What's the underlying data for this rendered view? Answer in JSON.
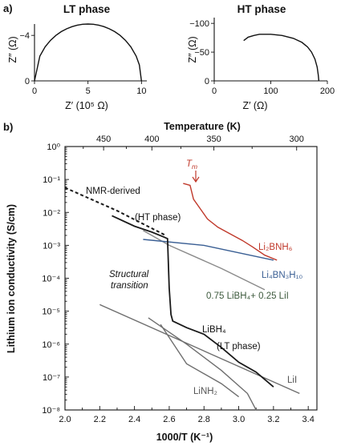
{
  "panel_labels": {
    "a": "a)",
    "b": "b)"
  },
  "chart_data": [
    {
      "id": "lt",
      "type": "line",
      "title": "LT phase",
      "xlabel": "Z′ (10⁵ Ω)",
      "ylabel": "Z″ (Ω)",
      "xlim": [
        0,
        10.5
      ],
      "ylim": [
        0,
        -5
      ],
      "xticks": [
        0,
        5,
        10
      ],
      "yticks": [
        0,
        -4
      ],
      "grid": false,
      "series": [
        {
          "points": [
            [
              0,
              0
            ],
            [
              0.5,
              -2.18
            ],
            [
              1,
              -3.0
            ],
            [
              1.5,
              -3.57
            ],
            [
              2,
              -4.0
            ],
            [
              2.5,
              -4.33
            ],
            [
              3,
              -4.58
            ],
            [
              3.5,
              -4.77
            ],
            [
              4,
              -4.9
            ],
            [
              4.5,
              -4.98
            ],
            [
              5,
              -5.0
            ],
            [
              5.5,
              -4.98
            ],
            [
              6,
              -4.9
            ],
            [
              6.5,
              -4.77
            ],
            [
              7,
              -4.58
            ],
            [
              7.5,
              -4.33
            ],
            [
              8,
              -4.0
            ],
            [
              8.5,
              -3.57
            ],
            [
              9,
              -3.0
            ],
            [
              9.5,
              -2.18
            ],
            [
              9.8,
              -1.4
            ],
            [
              10,
              0
            ]
          ]
        }
      ]
    },
    {
      "id": "ht",
      "type": "line",
      "title": "HT phase",
      "xlabel": "Z′ (Ω)",
      "ylabel": "Z″ (Ω)",
      "xlim": [
        0,
        200
      ],
      "ylim": [
        0,
        -110
      ],
      "xticks": [
        0,
        100,
        200
      ],
      "yticks": [
        0,
        -50,
        -100
      ],
      "grid": false,
      "series": [
        {
          "points": [
            [
              52,
              -70
            ],
            [
              60,
              -76
            ],
            [
              70,
              -79
            ],
            [
              80,
              -81
            ],
            [
              100,
              -81
            ],
            [
              120,
              -79
            ],
            [
              140,
              -74
            ],
            [
              155,
              -67
            ],
            [
              165,
              -59
            ],
            [
              172,
              -50
            ],
            [
              178,
              -38
            ],
            [
              182,
              -24
            ],
            [
              184,
              -10
            ],
            [
              185,
              0
            ]
          ]
        }
      ]
    },
    {
      "id": "cond",
      "type": "line",
      "xlabel": "1000/T (K⁻¹)",
      "ylabel": "Lithium ion conductivity (S/cm)",
      "top_label": "Temperature (K)",
      "xlim": [
        2.0,
        3.45
      ],
      "ylim_exp": [
        -8,
        0
      ],
      "log_y": true,
      "xticks": [
        2.0,
        2.2,
        2.4,
        2.6,
        2.8,
        3.0,
        3.2,
        3.4
      ],
      "ytick_labels": [
        "10⁰",
        "10⁻¹",
        "10⁻²",
        "10⁻³",
        "10⁻⁴",
        "10⁻⁵",
        "10⁻⁶",
        "10⁻⁷",
        "10⁻⁸"
      ],
      "top_ticks": [
        450,
        400,
        350,
        300
      ],
      "grid": false,
      "series": [
        {
          "name": "NMR-derived",
          "color": "#1a1a1a",
          "dashed": true,
          "points": [
            [
              2.0,
              -1.25
            ],
            [
              2.3,
              -1.95
            ],
            [
              2.58,
              -2.7
            ]
          ]
        },
        {
          "name": "LiBH₄ HT/LT",
          "color": "#1a1a1a",
          "points": [
            [
              2.27,
              -2.1
            ],
            [
              2.4,
              -2.42
            ],
            [
              2.5,
              -2.6
            ],
            [
              2.57,
              -2.75
            ],
            [
              2.59,
              -2.8
            ],
            [
              2.6,
              -4.3
            ],
            [
              2.61,
              -5.1
            ],
            [
              2.62,
              -5.3
            ],
            [
              2.7,
              -5.5
            ],
            [
              2.8,
              -5.7
            ],
            [
              2.9,
              -6.1
            ],
            [
              3.0,
              -6.55
            ],
            [
              3.1,
              -6.85
            ],
            [
              3.2,
              -7.3
            ]
          ]
        },
        {
          "name": "Li₂BNH₆",
          "color": "#c0392b",
          "points": [
            [
              2.68,
              -1.12
            ],
            [
              2.72,
              -1.18
            ],
            [
              2.74,
              -1.6
            ],
            [
              2.78,
              -1.9
            ],
            [
              2.82,
              -2.2
            ],
            [
              2.88,
              -2.45
            ],
            [
              2.95,
              -2.65
            ],
            [
              3.02,
              -2.85
            ],
            [
              3.08,
              -3.05
            ],
            [
              3.15,
              -3.3
            ],
            [
              3.22,
              -3.45
            ]
          ]
        },
        {
          "name": "Li₄BN₃H₁₀",
          "color": "#3a5f94",
          "points": [
            [
              2.45,
              -2.82
            ],
            [
              2.8,
              -3.0
            ],
            [
              3.2,
              -3.45
            ]
          ]
        },
        {
          "name": "0.75 LiBH₄+ 0.25 LiI",
          "color": "#8a8a8a",
          "points": [
            [
              2.45,
              -2.55
            ],
            [
              2.6,
              -3.0
            ],
            [
              2.9,
              -3.7
            ],
            [
              3.15,
              -4.35
            ]
          ]
        },
        {
          "name": "LiI",
          "color": "#6e6e6e",
          "points": [
            [
              2.2,
              -4.8
            ],
            [
              3.35,
              -7.5
            ]
          ]
        },
        {
          "name": "LiNH₂",
          "color": "#6e6e6e",
          "points": [
            [
              2.48,
              -5.2
            ],
            [
              2.7,
              -6.0
            ],
            [
              2.9,
              -6.8
            ],
            [
              3.05,
              -7.5
            ],
            [
              3.1,
              -8.0
            ]
          ]
        },
        {
          "name": "Structural transition",
          "color": "#6e6e6e",
          "points": [
            [
              2.55,
              -5.4
            ],
            [
              2.7,
              -6.6
            ],
            [
              2.9,
              -7.2
            ],
            [
              3.0,
              -7.6
            ]
          ]
        }
      ],
      "labels": {
        "nmr": "NMR-derived",
        "ht_phase": "(HT phase)",
        "tm": "T",
        "tm_sub": "m",
        "li2bnh6": "Li₂BNH₆",
        "li4bn3h10": "Li₄BN₃H₁₀",
        "structural": "Structural",
        "transition": "transition",
        "mix": "0.75 LiBH₄+ 0.25 LiI",
        "libh4": "LiBH₄",
        "lt_phase": "(LT phase)",
        "lii": "LiI",
        "linh2": "LiNH₂"
      }
    }
  ]
}
